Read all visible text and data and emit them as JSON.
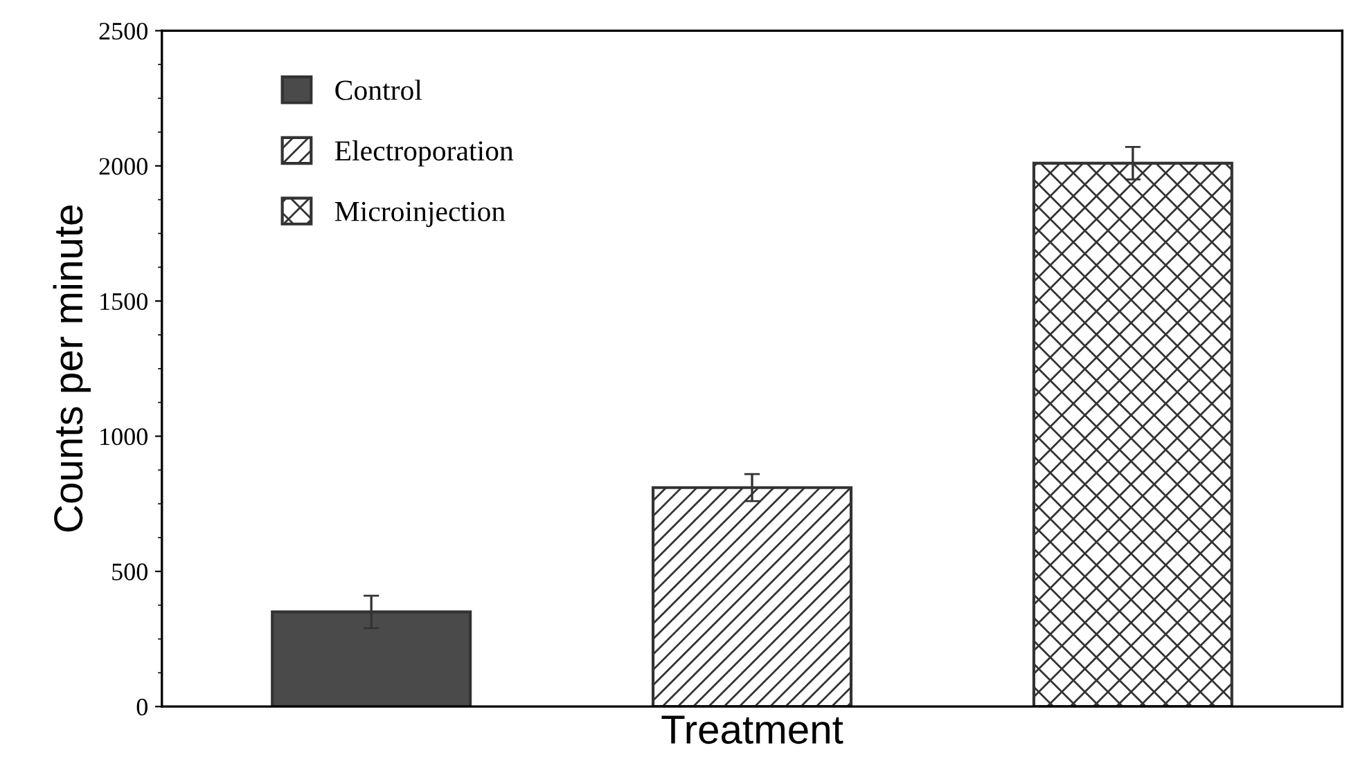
{
  "chart_data": {
    "type": "bar",
    "xlabel": "Treatment",
    "ylabel": "Counts per minute",
    "categories": [
      null,
      null,
      null
    ],
    "series": [
      {
        "name": "Control",
        "color": "#4a4a4a",
        "values": [
          350,
          null,
          null
        ],
        "errors": [
          60,
          null,
          null
        ]
      },
      {
        "name": "Electroporation",
        "color": "#333333",
        "values": [
          null,
          810,
          null
        ],
        "errors": [
          null,
          50,
          null
        ]
      },
      {
        "name": "Microinjection",
        "color": "#333333",
        "values": [
          null,
          null,
          2010
        ],
        "errors": [
          null,
          null,
          60
        ]
      }
    ],
    "ylim": [
      0,
      2500
    ],
    "yticks": [
      0,
      500,
      1000,
      1500,
      2000,
      2500
    ],
    "tick_labels": "y",
    "legend": "top left",
    "grid": false
  }
}
